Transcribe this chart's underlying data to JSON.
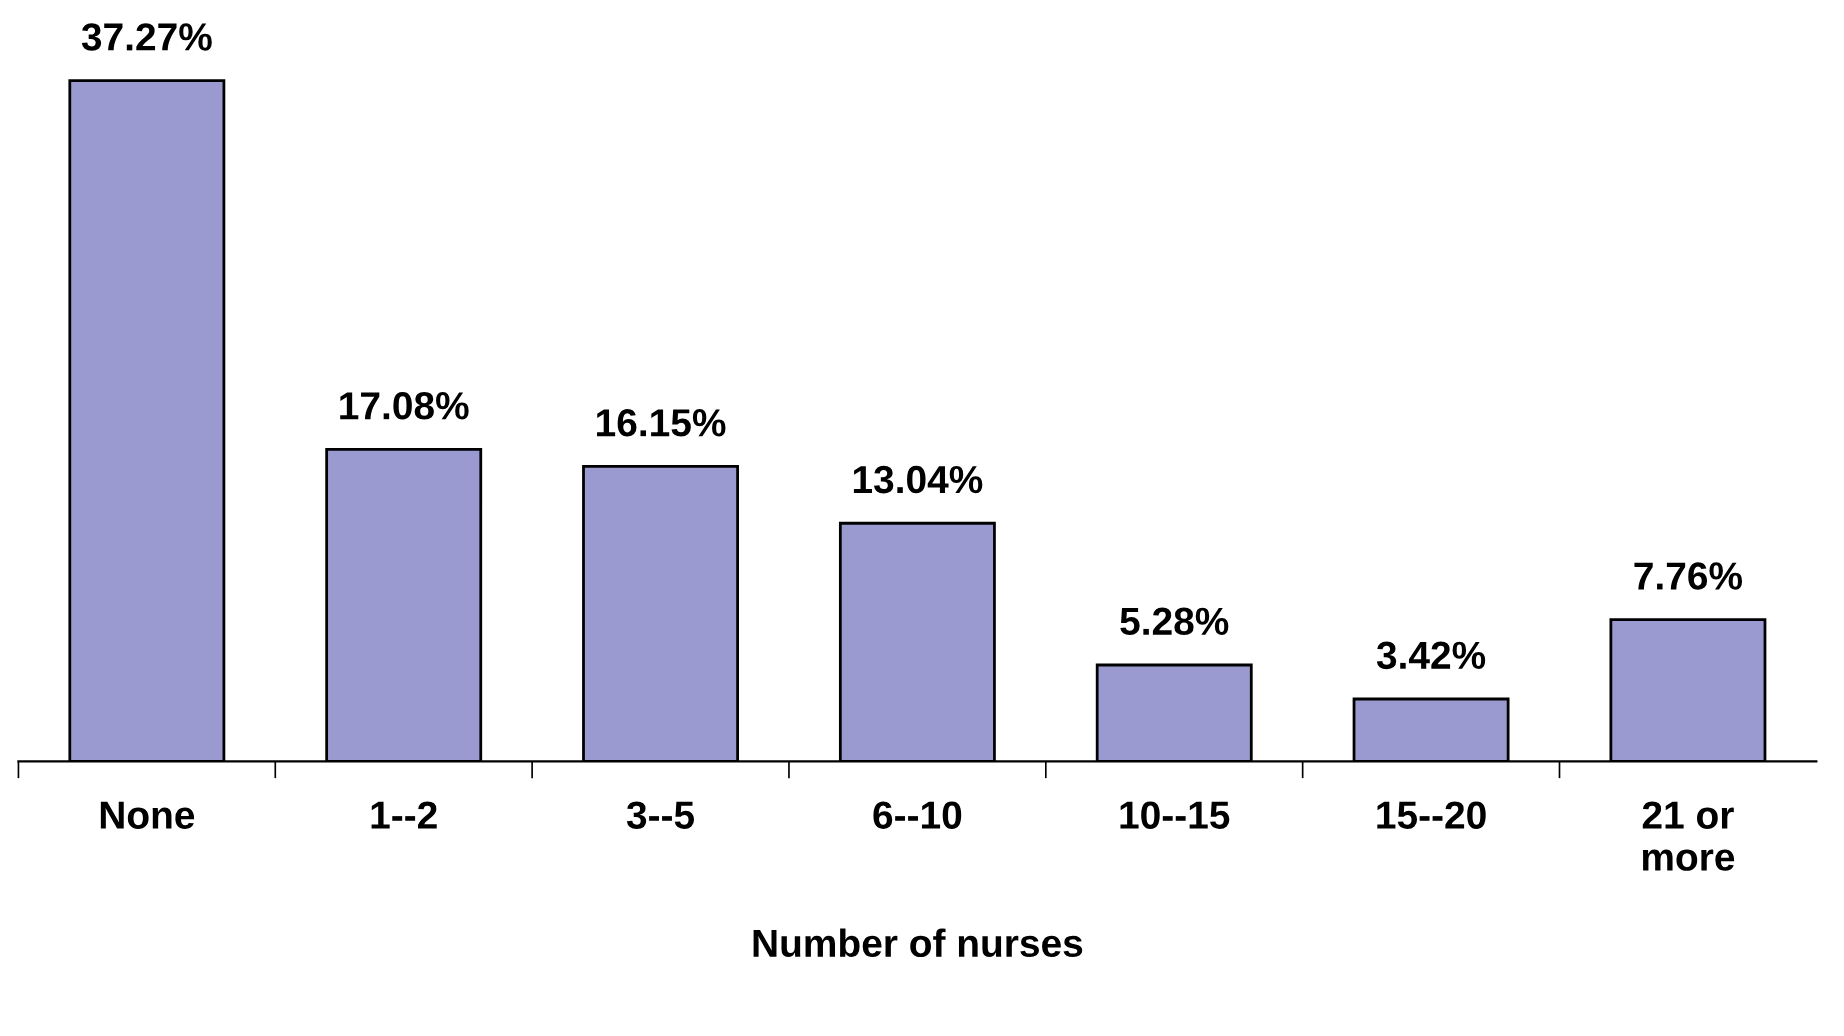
{
  "chart_data": {
    "type": "bar",
    "xlabel": "Number of nurses",
    "categories": [
      "None",
      "1--2",
      "3--5",
      "6--10",
      "10--15",
      "15--20",
      "21 or\nmore"
    ],
    "values": [
      37.27,
      17.08,
      16.15,
      13.04,
      5.28,
      3.42,
      7.76
    ],
    "value_labels": [
      "37.27%",
      "17.08%",
      "16.15%",
      "13.04%",
      "5.28%",
      "3.42%",
      "7.76%"
    ],
    "color": "#9a9ad0",
    "tick_labels": "x",
    "grid": false,
    "legend": false
  }
}
